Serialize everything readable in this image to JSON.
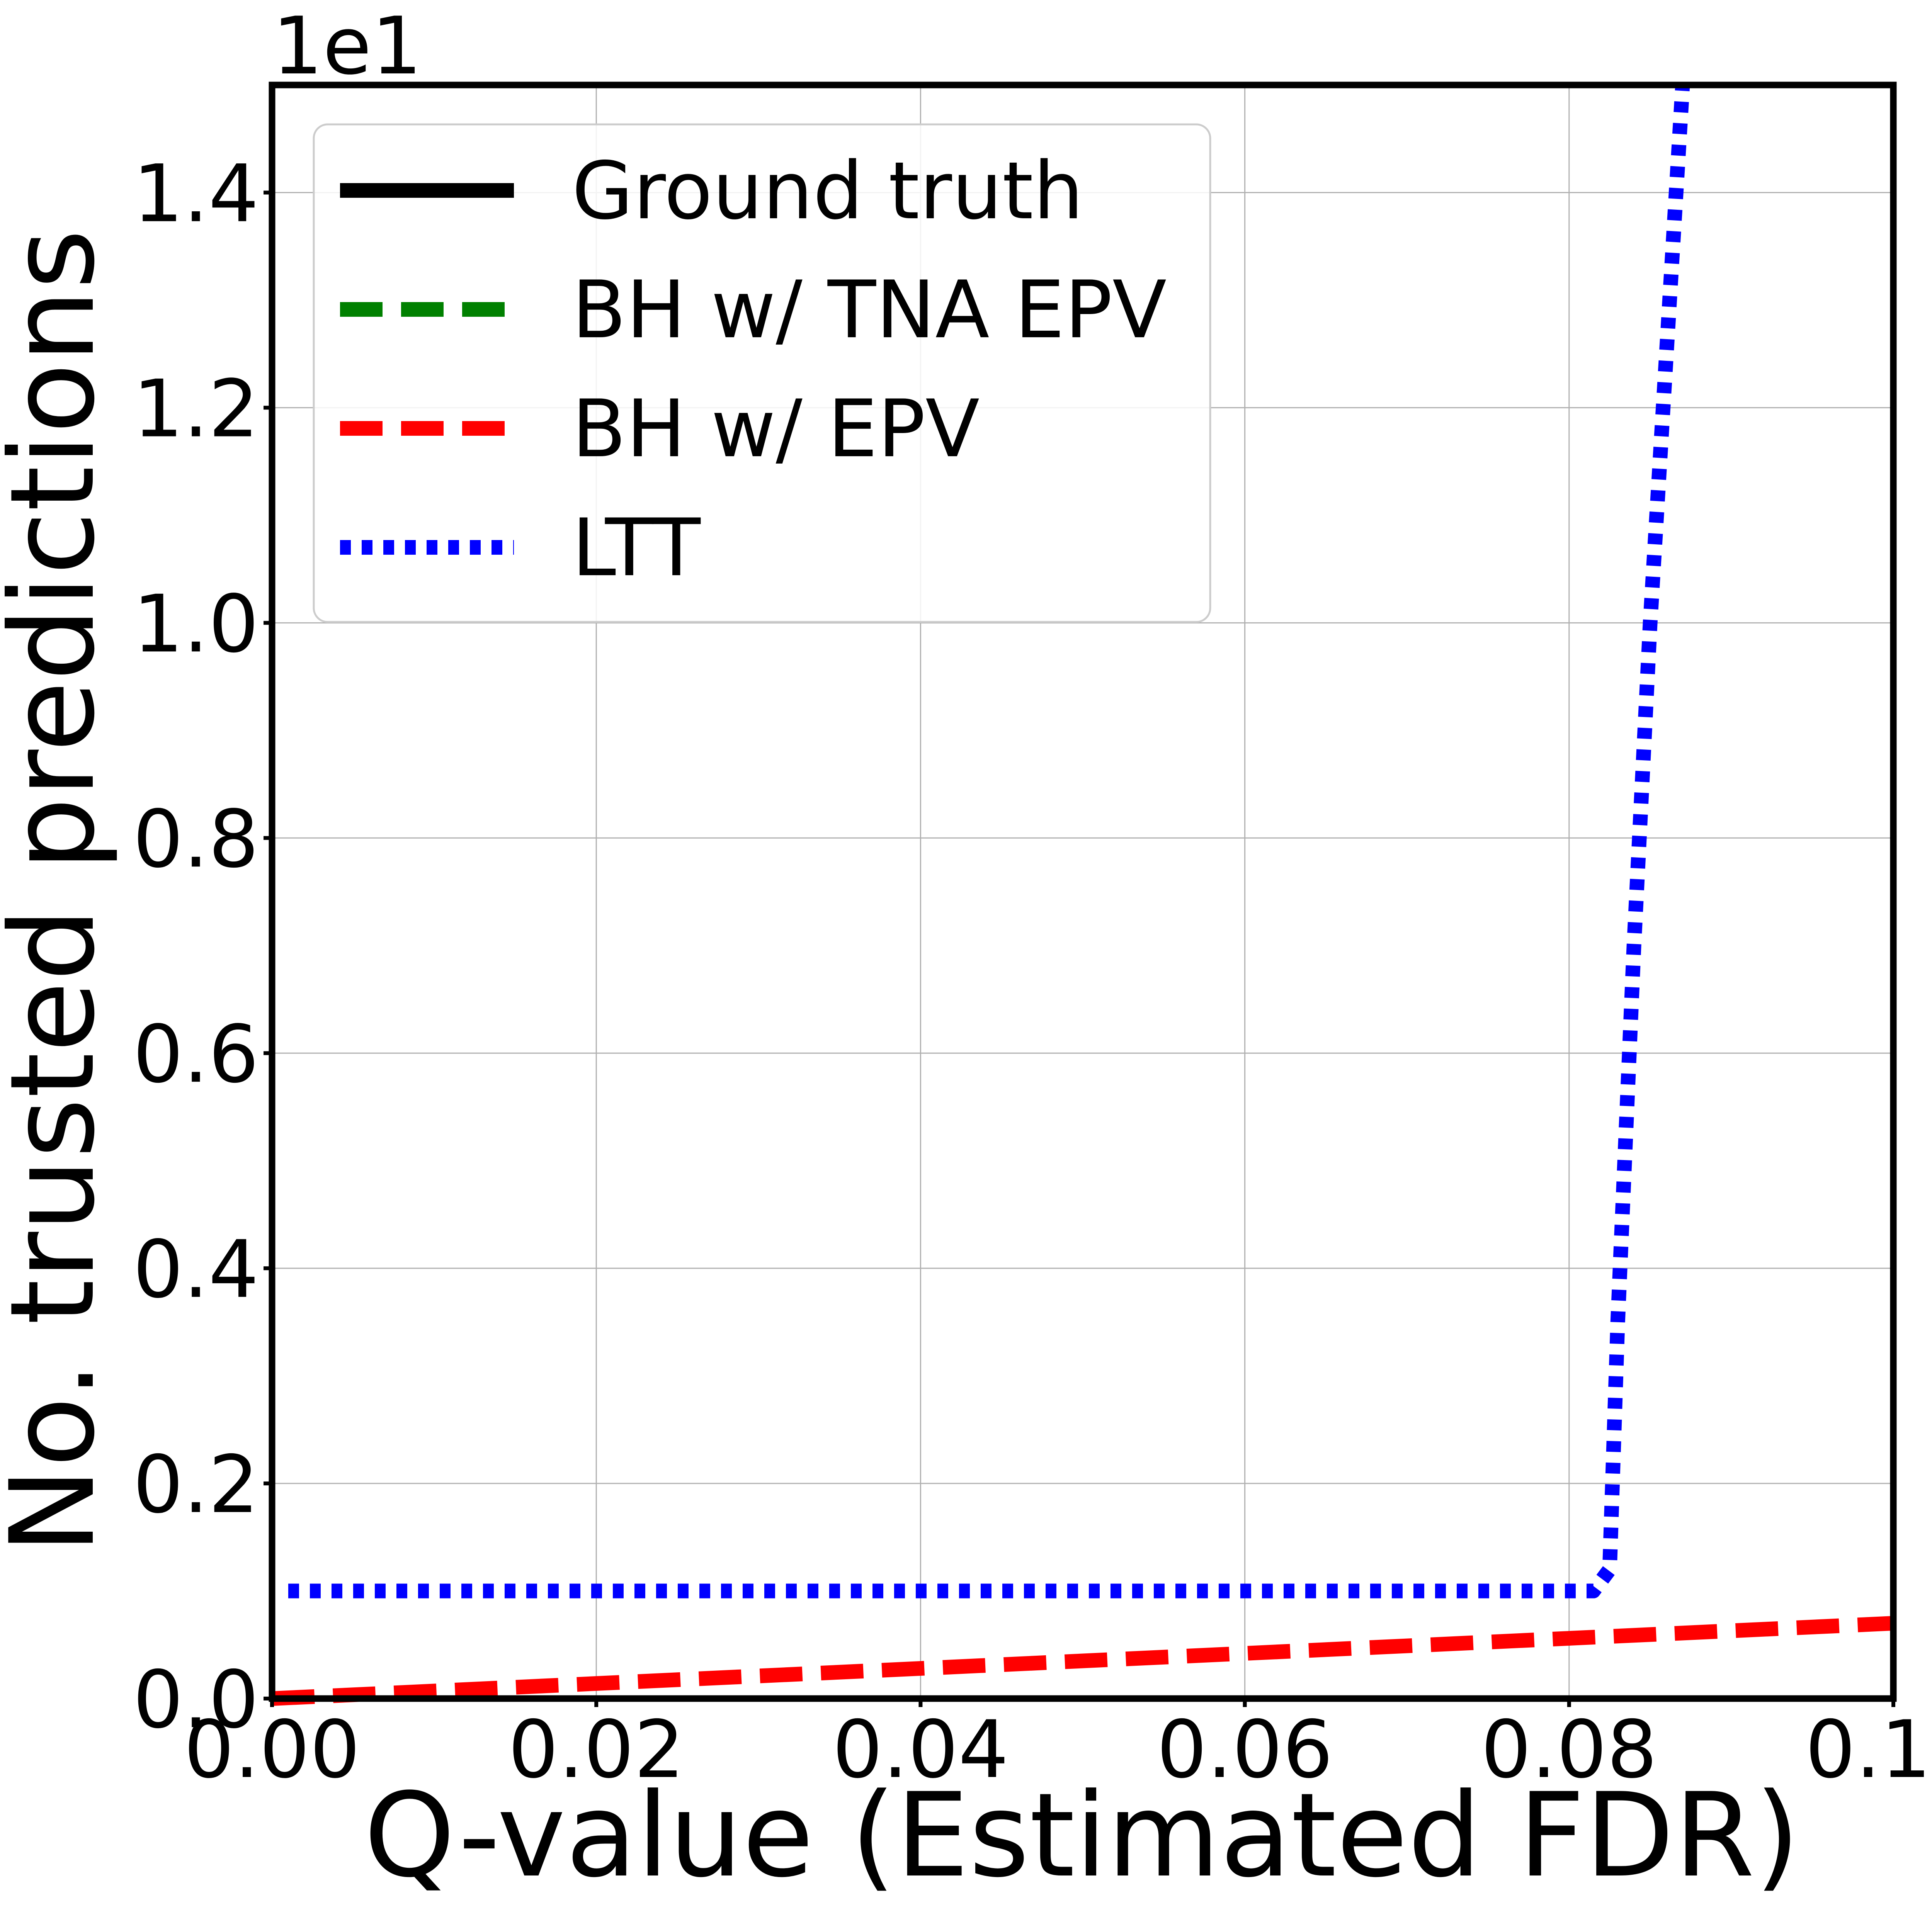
{
  "chart_data": {
    "type": "line",
    "title": "",
    "xlabel": "Q-value (Estimated FDR)",
    "ylabel": "No. trusted predictions",
    "y_offset_label": "1e1",
    "xlim": [
      0.0,
      0.1
    ],
    "ylim": [
      0.0,
      1.5
    ],
    "xticks": [
      0.0,
      0.02,
      0.04,
      0.06,
      0.08,
      0.1
    ],
    "xtick_labels": [
      "0.00",
      "0.02",
      "0.04",
      "0.06",
      "0.08",
      "0.10"
    ],
    "yticks": [
      0.0,
      0.2,
      0.4,
      0.6,
      0.8,
      1.0,
      1.2,
      1.4
    ],
    "ytick_labels": [
      "0.0",
      "0.2",
      "0.4",
      "0.6",
      "0.8",
      "1.0",
      "1.2",
      "1.4"
    ],
    "grid": true,
    "legend_position": "top-left",
    "series": [
      {
        "name": "Ground truth",
        "color": "#000000",
        "style": "solid",
        "x": [],
        "y": []
      },
      {
        "name": "BH w/ TNA EPV",
        "color": "#008000",
        "style": "dashed",
        "x": [],
        "y": []
      },
      {
        "name": "BH w/ EPV",
        "color": "#ff0000",
        "style": "dashed",
        "x": [
          0.0,
          0.1
        ],
        "y": [
          0.0,
          0.07
        ]
      },
      {
        "name": "LTT",
        "color": "#0000ff",
        "style": "dotted",
        "x": [
          0.001,
          0.0815,
          0.0825,
          0.083,
          0.084,
          0.085,
          0.086,
          0.087
        ],
        "y": [
          0.1,
          0.1,
          0.12,
          0.35,
          0.7,
          1.0,
          1.25,
          1.5
        ]
      }
    ]
  }
}
